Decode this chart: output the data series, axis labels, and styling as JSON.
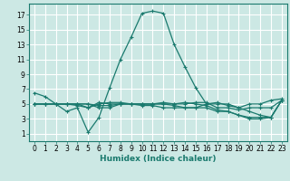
{
  "xlabel": "Humidex (Indice chaleur)",
  "bg_color": "#cce8e4",
  "grid_color": "#ffffff",
  "line_color": "#1a7a6e",
  "xlim": [
    -0.5,
    23.5
  ],
  "ylim": [
    0,
    18.5
  ],
  "xticks": [
    0,
    1,
    2,
    3,
    4,
    5,
    6,
    7,
    8,
    9,
    10,
    11,
    12,
    13,
    14,
    15,
    16,
    17,
    18,
    19,
    20,
    21,
    22,
    23
  ],
  "yticks": [
    1,
    3,
    5,
    7,
    9,
    11,
    13,
    15,
    17
  ],
  "series": [
    [
      6.5,
      6.0,
      5.0,
      4.0,
      4.5,
      1.2,
      3.2,
      7.2,
      11.0,
      14.0,
      17.2,
      17.5,
      17.2,
      13.0,
      10.0,
      7.2,
      5.0,
      5.2,
      4.8,
      4.5,
      5.0,
      5.0,
      5.5,
      5.7
    ],
    [
      5.0,
      5.0,
      5.0,
      5.0,
      5.0,
      4.5,
      5.0,
      5.2,
      5.2,
      5.0,
      5.0,
      5.0,
      5.0,
      5.0,
      5.0,
      5.2,
      5.2,
      4.5,
      4.5,
      4.2,
      4.5,
      4.5,
      4.5,
      5.5
    ],
    [
      5.0,
      5.0,
      5.0,
      5.0,
      4.8,
      4.5,
      5.2,
      5.0,
      5.0,
      5.0,
      4.8,
      4.8,
      4.5,
      4.5,
      4.5,
      4.5,
      5.0,
      5.0,
      5.0,
      4.5,
      4.0,
      3.5,
      3.2,
      5.5
    ],
    [
      5.0,
      5.0,
      5.0,
      5.0,
      5.0,
      5.0,
      4.8,
      4.8,
      5.0,
      5.0,
      5.0,
      5.0,
      5.2,
      5.0,
      5.2,
      5.0,
      4.8,
      4.2,
      4.0,
      3.5,
      3.2,
      3.2,
      3.2,
      5.5
    ],
    [
      5.0,
      5.0,
      5.0,
      5.0,
      5.0,
      5.0,
      4.5,
      4.5,
      5.0,
      5.0,
      5.0,
      5.0,
      5.0,
      4.8,
      4.5,
      4.5,
      4.5,
      4.0,
      4.0,
      3.5,
      3.0,
      3.0,
      3.2,
      5.5
    ]
  ],
  "tick_fontsize": 5.5,
  "xlabel_fontsize": 6.5,
  "xlabel_fontweight": "bold"
}
